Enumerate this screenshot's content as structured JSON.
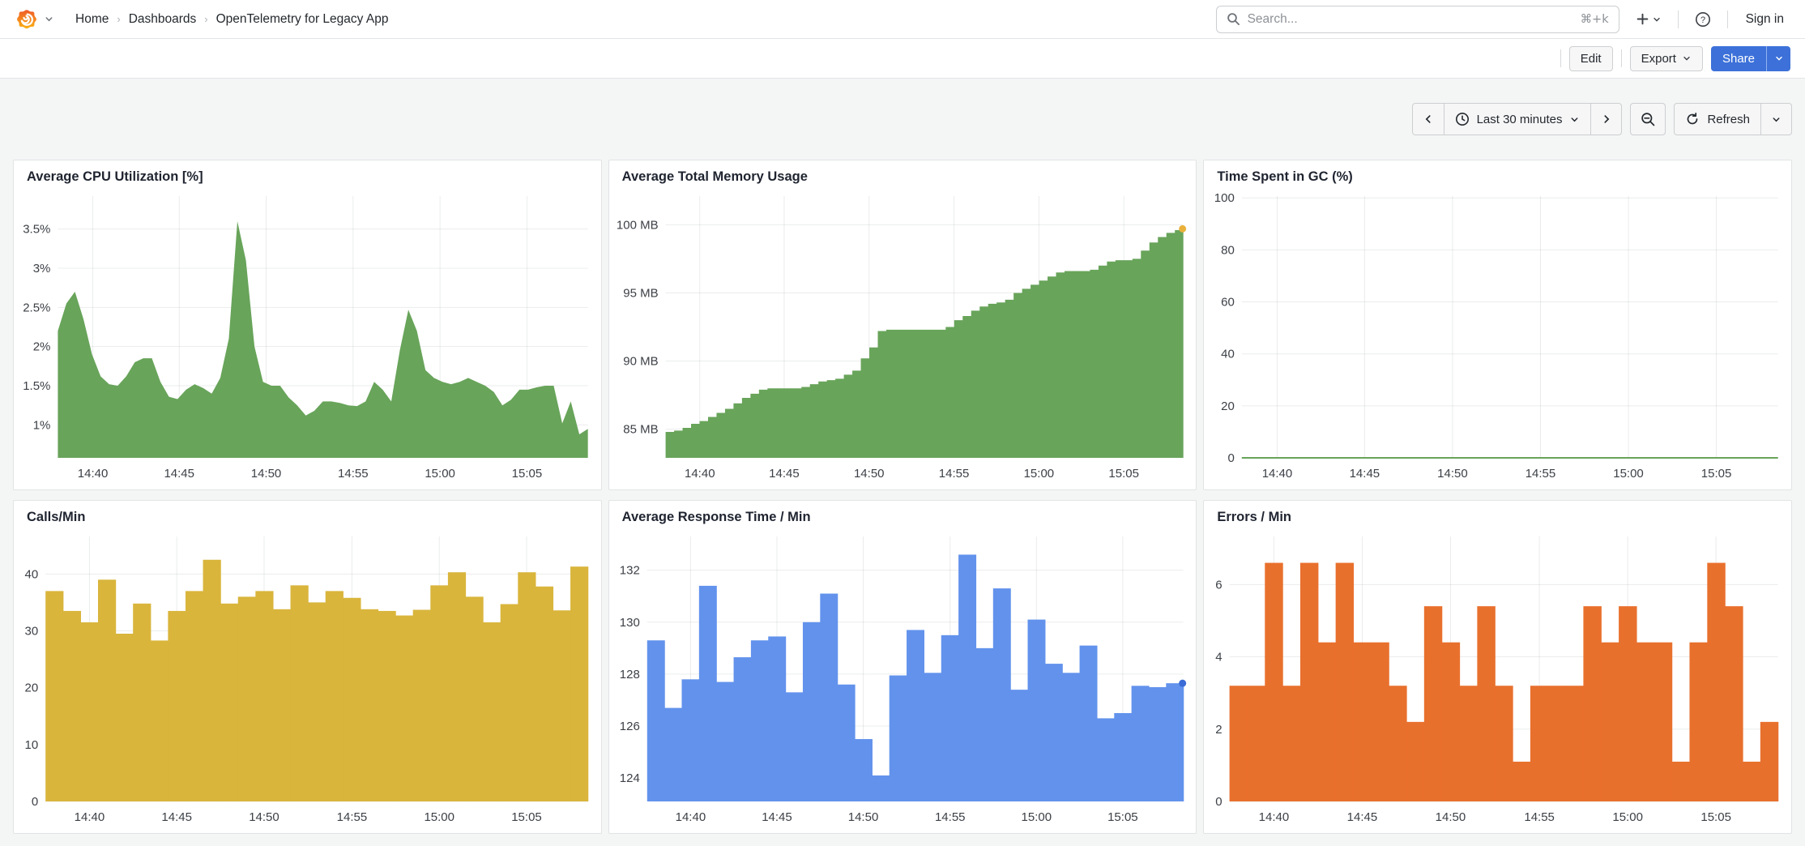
{
  "nav": {
    "breadcrumbs": [
      "Home",
      "Dashboards",
      "OpenTelemetry for Legacy App"
    ],
    "search_placeholder": "Search...",
    "search_shortcut": "⌘+k",
    "sign_in_label": "Sign in"
  },
  "toolbar": {
    "edit_label": "Edit",
    "export_label": "Export",
    "share_label": "Share"
  },
  "timebar": {
    "range_label": "Last 30 minutes",
    "refresh_label": "Refresh"
  },
  "colors": {
    "green": "#68a45a",
    "yellow": "#d9b53c",
    "blue": "#6292ec",
    "orange": "#e8702d",
    "primary_blue": "#3d71d9",
    "memory_end_dot": "#e9b13b",
    "response_end_dot": "#3b6bd6"
  },
  "chart_data": [
    {
      "type": "area",
      "title": "Average CPU Utilization [%]",
      "color": "#68a45a",
      "ylim": [
        0.58,
        3.92
      ],
      "y_ticks": [
        {
          "v": 1.0,
          "label": "1%"
        },
        {
          "v": 1.5,
          "label": "1.5%"
        },
        {
          "v": 2.0,
          "label": "2%"
        },
        {
          "v": 2.5,
          "label": "2.5%"
        },
        {
          "v": 3.0,
          "label": "3%"
        },
        {
          "v": 3.5,
          "label": "3.5%"
        }
      ],
      "x_ticks": [
        {
          "f": 0.066,
          "label": "14:40"
        },
        {
          "f": 0.229,
          "label": "14:45"
        },
        {
          "f": 0.393,
          "label": "14:50"
        },
        {
          "f": 0.557,
          "label": "14:55"
        },
        {
          "f": 0.721,
          "label": "15:00"
        },
        {
          "f": 0.885,
          "label": "15:05"
        }
      ],
      "values": [
        2.2,
        2.55,
        2.7,
        2.35,
        1.9,
        1.62,
        1.52,
        1.5,
        1.62,
        1.8,
        1.85,
        1.85,
        1.55,
        1.36,
        1.33,
        1.45,
        1.52,
        1.47,
        1.4,
        1.6,
        2.1,
        3.6,
        3.1,
        2.0,
        1.55,
        1.5,
        1.5,
        1.35,
        1.25,
        1.12,
        1.18,
        1.3,
        1.3,
        1.28,
        1.25,
        1.24,
        1.3,
        1.55,
        1.45,
        1.3,
        1.95,
        2.47,
        2.2,
        1.7,
        1.6,
        1.55,
        1.52,
        1.55,
        1.6,
        1.55,
        1.5,
        1.42,
        1.25,
        1.32,
        1.45,
        1.45,
        1.48,
        1.5,
        1.5,
        1.02,
        1.3,
        0.88,
        0.95
      ]
    },
    {
      "type": "step-area",
      "title": "Average Total Memory Usage",
      "color": "#68a45a",
      "end_dot": "#e9b13b",
      "ylim": [
        82.9,
        102.1
      ],
      "y_ticks": [
        {
          "v": 85,
          "label": "85 MB"
        },
        {
          "v": 90,
          "label": "90 MB"
        },
        {
          "v": 95,
          "label": "95 MB"
        },
        {
          "v": 100,
          "label": "100 MB"
        }
      ],
      "x_ticks": [
        {
          "f": 0.066,
          "label": "14:40"
        },
        {
          "f": 0.229,
          "label": "14:45"
        },
        {
          "f": 0.393,
          "label": "14:50"
        },
        {
          "f": 0.557,
          "label": "14:55"
        },
        {
          "f": 0.721,
          "label": "15:00"
        },
        {
          "f": 0.885,
          "label": "15:05"
        }
      ],
      "values": [
        84.8,
        84.9,
        85.1,
        85.4,
        85.6,
        85.9,
        86.2,
        86.5,
        86.9,
        87.3,
        87.6,
        87.9,
        88.0,
        88.0,
        88.0,
        88.0,
        88.1,
        88.3,
        88.5,
        88.6,
        88.7,
        89.0,
        89.3,
        90.2,
        91.0,
        92.2,
        92.3,
        92.3,
        92.3,
        92.3,
        92.3,
        92.3,
        92.3,
        92.5,
        93.0,
        93.3,
        93.7,
        94.0,
        94.2,
        94.3,
        94.5,
        95.0,
        95.3,
        95.6,
        95.9,
        96.2,
        96.5,
        96.6,
        96.6,
        96.6,
        96.7,
        97.0,
        97.3,
        97.4,
        97.4,
        97.5,
        98.1,
        98.7,
        99.1,
        99.4,
        99.6,
        99.7
      ]
    },
    {
      "type": "line",
      "title": "Time Spent in GC (%)",
      "color": "#68a45a",
      "ylim": [
        0,
        100.7
      ],
      "y_ticks": [
        {
          "v": 0,
          "label": "0"
        },
        {
          "v": 20,
          "label": "20"
        },
        {
          "v": 40,
          "label": "40"
        },
        {
          "v": 60,
          "label": "60"
        },
        {
          "v": 80,
          "label": "80"
        },
        {
          "v": 100,
          "label": "100"
        }
      ],
      "x_ticks": [
        {
          "f": 0.066,
          "label": "14:40"
        },
        {
          "f": 0.229,
          "label": "14:45"
        },
        {
          "f": 0.393,
          "label": "14:50"
        },
        {
          "f": 0.557,
          "label": "14:55"
        },
        {
          "f": 0.721,
          "label": "15:00"
        },
        {
          "f": 0.885,
          "label": "15:05"
        }
      ],
      "values": [
        0,
        0
      ]
    },
    {
      "type": "bar",
      "title": "Calls/Min",
      "color": "#d9b53c",
      "ylim": [
        0,
        46.6
      ],
      "y_ticks": [
        {
          "v": 0,
          "label": "0"
        },
        {
          "v": 10,
          "label": "10"
        },
        {
          "v": 20,
          "label": "20"
        },
        {
          "v": 30,
          "label": "30"
        },
        {
          "v": 40,
          "label": "40"
        }
      ],
      "x_ticks": [
        {
          "f": 0.081,
          "label": "14:40"
        },
        {
          "f": 0.242,
          "label": "14:45"
        },
        {
          "f": 0.403,
          "label": "14:50"
        },
        {
          "f": 0.565,
          "label": "14:55"
        },
        {
          "f": 0.726,
          "label": "15:00"
        },
        {
          "f": 0.887,
          "label": "15:05"
        }
      ],
      "values": [
        37,
        33.5,
        31.5,
        39,
        29.5,
        34.8,
        28.3,
        33.5,
        37,
        42.5,
        34.8,
        36,
        37,
        33.8,
        38,
        35,
        37,
        35.8,
        33.8,
        33.5,
        32.7,
        33.7,
        38,
        40.3,
        36,
        31.5,
        34.7,
        40.3,
        37.8,
        33.6,
        41.3
      ]
    },
    {
      "type": "bar",
      "title": "Average Response Time / Min",
      "color": "#6292ec",
      "end_dot": "#3b6bd6",
      "ylim": [
        123.1,
        133.3
      ],
      "y_ticks": [
        {
          "v": 124,
          "label": "124"
        },
        {
          "v": 126,
          "label": "126"
        },
        {
          "v": 128,
          "label": "128"
        },
        {
          "v": 130,
          "label": "130"
        },
        {
          "v": 132,
          "label": "132"
        }
      ],
      "x_ticks": [
        {
          "f": 0.081,
          "label": "14:40"
        },
        {
          "f": 0.242,
          "label": "14:45"
        },
        {
          "f": 0.403,
          "label": "14:50"
        },
        {
          "f": 0.565,
          "label": "14:55"
        },
        {
          "f": 0.726,
          "label": "15:00"
        },
        {
          "f": 0.887,
          "label": "15:05"
        }
      ],
      "values": [
        129.3,
        126.7,
        127.8,
        131.4,
        127.7,
        128.65,
        129.3,
        129.45,
        127.3,
        130.0,
        131.1,
        127.6,
        125.5,
        124.1,
        127.95,
        129.7,
        128.05,
        129.5,
        132.6,
        129.0,
        131.3,
        127.4,
        130.1,
        128.4,
        128.05,
        129.1,
        126.3,
        126.5,
        127.55,
        127.5,
        127.65
      ]
    },
    {
      "type": "bar",
      "title": "Errors / Min",
      "color": "#e8702d",
      "ylim": [
        0,
        7.33
      ],
      "y_ticks": [
        {
          "v": 0,
          "label": "0"
        },
        {
          "v": 2,
          "label": "2"
        },
        {
          "v": 4,
          "label": "4"
        },
        {
          "v": 6,
          "label": "6"
        }
      ],
      "x_ticks": [
        {
          "f": 0.081,
          "label": "14:40"
        },
        {
          "f": 0.242,
          "label": "14:45"
        },
        {
          "f": 0.403,
          "label": "14:50"
        },
        {
          "f": 0.565,
          "label": "14:55"
        },
        {
          "f": 0.726,
          "label": "15:00"
        },
        {
          "f": 0.887,
          "label": "15:05"
        }
      ],
      "values": [
        3.2,
        3.2,
        6.6,
        3.2,
        6.6,
        4.4,
        6.6,
        4.4,
        4.4,
        3.2,
        2.2,
        5.4,
        4.4,
        3.2,
        5.4,
        3.2,
        1.1,
        3.2,
        3.2,
        3.2,
        5.4,
        4.4,
        5.4,
        4.4,
        4.4,
        1.1,
        4.4,
        6.6,
        5.4,
        1.1,
        2.2
      ]
    }
  ]
}
